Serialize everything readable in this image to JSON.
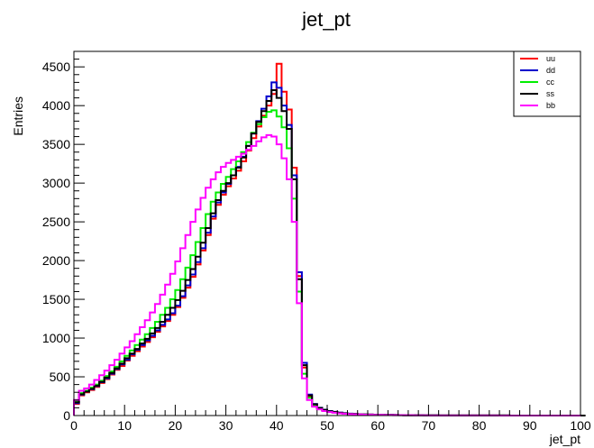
{
  "chart_data": {
    "type": "line",
    "title": "jet_pt",
    "xlabel": "jet_pt",
    "ylabel": "Entries",
    "xlim": [
      0,
      100
    ],
    "ylim": [
      0,
      4700
    ],
    "xticks": [
      "0",
      "10",
      "20",
      "30",
      "40",
      "50",
      "60",
      "70",
      "80",
      "90",
      "100"
    ],
    "yticks": [
      "0",
      "500",
      "1000",
      "1500",
      "2000",
      "2500",
      "3000",
      "3500",
      "4000",
      "4500"
    ],
    "bin_width": 1,
    "legend_position": "top-right",
    "grid": false,
    "series": [
      {
        "name": "uu",
        "color": "#ff0000",
        "values": [
          150,
          260,
          300,
          330,
          370,
          420,
          470,
          530,
          590,
          640,
          710,
          770,
          830,
          890,
          950,
          1010,
          1080,
          1150,
          1220,
          1300,
          1400,
          1520,
          1650,
          1790,
          1950,
          2130,
          2330,
          2540,
          2720,
          2850,
          2960,
          3060,
          3160,
          3280,
          3420,
          3580,
          3730,
          3870,
          4000,
          4150,
          4540,
          4180,
          3950,
          3200,
          1800,
          620,
          250,
          140,
          95,
          70,
          55,
          45,
          35,
          28,
          24,
          20,
          18,
          15,
          13,
          11,
          10,
          9,
          8,
          7,
          6,
          5,
          5,
          4,
          4,
          3,
          3,
          3,
          2,
          2,
          2,
          2,
          2,
          1,
          1,
          1,
          1,
          1,
          1,
          1,
          1,
          1,
          0,
          0,
          0,
          0,
          0,
          0,
          0,
          0,
          0,
          0,
          0,
          0,
          0,
          0
        ]
      },
      {
        "name": "dd",
        "color": "#0000cc",
        "values": [
          160,
          270,
          310,
          340,
          380,
          430,
          480,
          540,
          600,
          660,
          720,
          790,
          850,
          910,
          970,
          1030,
          1100,
          1170,
          1240,
          1320,
          1420,
          1540,
          1680,
          1820,
          1980,
          2160,
          2360,
          2570,
          2750,
          2880,
          2990,
          3100,
          3210,
          3340,
          3480,
          3640,
          3800,
          3960,
          4120,
          4300,
          4230,
          4000,
          3750,
          3100,
          1850,
          680,
          270,
          150,
          100,
          75,
          58,
          48,
          38,
          30,
          25,
          21,
          18,
          15,
          13,
          11,
          10,
          9,
          8,
          7,
          6,
          5,
          5,
          4,
          4,
          3,
          3,
          3,
          2,
          2,
          2,
          2,
          2,
          1,
          1,
          1,
          1,
          1,
          1,
          1,
          1,
          1,
          0,
          0,
          0,
          0,
          0,
          0,
          0,
          0,
          0,
          0,
          0,
          0,
          0,
          0
        ]
      },
      {
        "name": "cc",
        "color": "#00ee00",
        "values": [
          180,
          290,
          320,
          360,
          400,
          450,
          510,
          570,
          630,
          700,
          770,
          840,
          910,
          980,
          1050,
          1130,
          1210,
          1300,
          1390,
          1500,
          1620,
          1760,
          1910,
          2070,
          2240,
          2420,
          2600,
          2760,
          2880,
          2990,
          3080,
          3180,
          3280,
          3400,
          3530,
          3650,
          3760,
          3850,
          3920,
          3940,
          3860,
          3720,
          3450,
          2800,
          1600,
          540,
          230,
          130,
          90,
          65,
          50,
          40,
          32,
          26,
          22,
          19,
          16,
          14,
          12,
          10,
          9,
          8,
          7,
          6,
          5,
          5,
          4,
          4,
          3,
          3,
          3,
          2,
          2,
          2,
          2,
          2,
          1,
          1,
          1,
          1,
          1,
          1,
          1,
          1,
          1,
          0,
          0,
          0,
          0,
          0,
          0,
          0,
          0,
          0,
          0,
          0,
          0,
          0,
          0,
          0
        ]
      },
      {
        "name": "ss",
        "color": "#000000",
        "values": [
          170,
          275,
          310,
          345,
          385,
          435,
          490,
          550,
          610,
          670,
          740,
          800,
          860,
          930,
          990,
          1060,
          1130,
          1210,
          1300,
          1390,
          1490,
          1610,
          1750,
          1890,
          2050,
          2230,
          2420,
          2610,
          2780,
          2900,
          3000,
          3100,
          3200,
          3330,
          3480,
          3640,
          3790,
          3930,
          4060,
          4200,
          4100,
          3930,
          3700,
          3050,
          1760,
          650,
          260,
          145,
          98,
          72,
          56,
          46,
          36,
          29,
          24,
          20,
          18,
          15,
          13,
          11,
          10,
          9,
          8,
          7,
          6,
          5,
          5,
          4,
          4,
          3,
          3,
          3,
          2,
          2,
          2,
          2,
          2,
          1,
          1,
          1,
          1,
          1,
          1,
          1,
          1,
          1,
          0,
          0,
          0,
          0,
          0,
          0,
          0,
          0,
          0,
          0,
          0,
          0,
          0,
          0,
          0
        ]
      },
      {
        "name": "bb",
        "color": "#ff00ff",
        "values": [
          200,
          320,
          350,
          400,
          460,
          520,
          580,
          650,
          720,
          800,
          880,
          960,
          1050,
          1140,
          1230,
          1330,
          1440,
          1560,
          1690,
          1830,
          1990,
          2160,
          2330,
          2500,
          2660,
          2810,
          2940,
          3050,
          3140,
          3210,
          3260,
          3300,
          3340,
          3380,
          3430,
          3480,
          3540,
          3590,
          3620,
          3600,
          3500,
          3320,
          3050,
          2500,
          1450,
          480,
          200,
          115,
          80,
          58,
          45,
          36,
          29,
          23,
          19,
          16,
          14,
          12,
          10,
          9,
          8,
          7,
          6,
          5,
          5,
          4,
          4,
          3,
          3,
          3,
          2,
          2,
          2,
          2,
          2,
          1,
          1,
          1,
          1,
          1,
          1,
          1,
          1,
          1,
          0,
          0,
          0,
          0,
          0,
          0,
          0,
          0,
          0,
          0,
          0,
          0,
          0,
          0,
          0,
          0
        ]
      }
    ]
  }
}
